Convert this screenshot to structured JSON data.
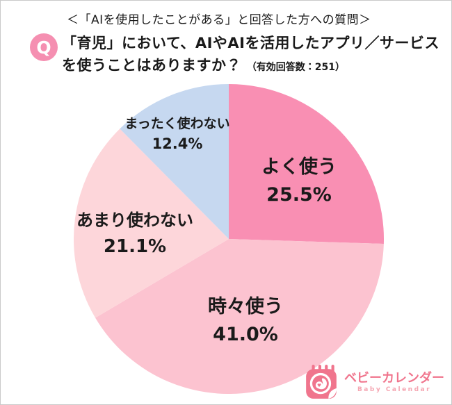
{
  "header": {
    "context_line": "＜「AIを使用したことがある」と回答した方への質問＞",
    "q_badge": "Q",
    "question_line1": "「育児」において、AIやAIを活用したアプリ／サービス",
    "question_line2": "を使うことはありますか？",
    "valid_responses_note": "（有効回答数：251）"
  },
  "chart_data": {
    "type": "pie",
    "title": "「育児」において、AIやAIを活用したアプリ／サービスを使うことはありますか？",
    "valid_responses": 251,
    "start_angle_deg": 0,
    "direction": "clockwise",
    "legend_position": "labels-on-slices",
    "slices": [
      {
        "label": "よく使う",
        "value": 25.5,
        "display": "25.5%",
        "color": "#f98fb3"
      },
      {
        "label": "時々使う",
        "value": 41.0,
        "display": "41.0%",
        "color": "#fcc3d0"
      },
      {
        "label": "あまり使わない",
        "value": 21.1,
        "display": "21.1%",
        "color": "#fdd6da"
      },
      {
        "label": "まったく使わない",
        "value": 12.4,
        "display": "12.4%",
        "color": "#c6d8f0"
      }
    ]
  },
  "logo": {
    "name": "ベビーカレンダー",
    "subtitle": "Baby Calendar",
    "brand_color": "#f0758d",
    "subtitle_color": "#f5a6b2"
  },
  "colors": {
    "q_badge": "#f58fb1",
    "text": "#1a1a1a",
    "page_border": "#c9c9c9",
    "background": "#ffffff"
  }
}
